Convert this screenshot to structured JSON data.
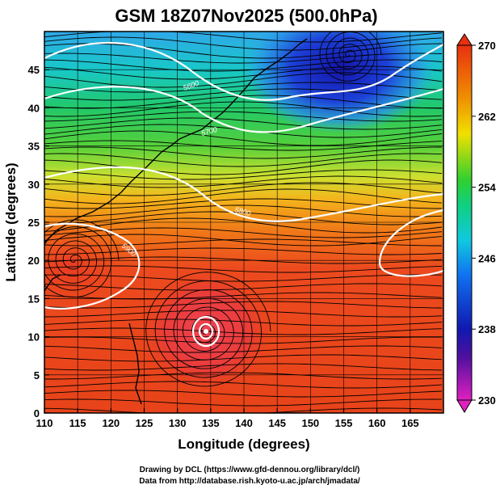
{
  "title": "GSM 18Z07Nov2025 (500.0hPa)",
  "xlabel": "Longitude (degrees)",
  "ylabel": "Latitude  (degrees)",
  "xticks": [
    "110",
    "115",
    "120",
    "125",
    "130",
    "135",
    "140",
    "145",
    "150",
    "155",
    "160",
    "165"
  ],
  "yticks": [
    "0",
    "5",
    "10",
    "15",
    "20",
    "25",
    "30",
    "35",
    "40",
    "45"
  ],
  "colorbar": {
    "ticks": [
      "230",
      "238",
      "246",
      "254",
      "262",
      "270"
    ],
    "min": 230,
    "max": 270,
    "colors": [
      "#e020c0",
      "#1010b0",
      "#1060f0",
      "#10c0e0",
      "#20d040",
      "#f0e000",
      "#f08000",
      "#e83010"
    ]
  },
  "contour_labels": [
    "5600",
    "5700",
    "5800",
    "5900"
  ],
  "credits": [
    "Drawing by DCL (https://www.gfd-dennou.org/library/dcl/)",
    "Data from http://database.rish.kyoto-u.ac.jp/arch/jmadata/"
  ],
  "map": {
    "lon_range": [
      110,
      170
    ],
    "lat_range": [
      0,
      50
    ],
    "features": [
      "temperature-shading",
      "streamlines",
      "geopotential-contours",
      "coastlines",
      "typhoon-center"
    ]
  }
}
